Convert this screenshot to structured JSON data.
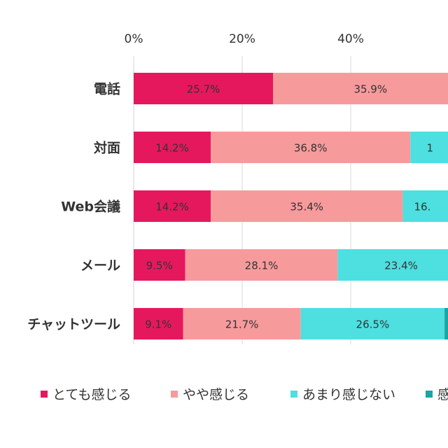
{
  "chart_data": {
    "type": "bar",
    "orientation": "horizontal",
    "stacked": true,
    "categories": [
      "電話",
      "対面",
      "Web会議",
      "メール",
      "チャットツール"
    ],
    "x_ticks": [
      "0%",
      "20%",
      "40%"
    ],
    "xlim": [
      0,
      100
    ],
    "series": [
      {
        "name": "とても感じる",
        "color": "#e5185e",
        "values": [
          25.7,
          14.2,
          14.2,
          9.5,
          9.1
        ],
        "labels": [
          "25.7%",
          "14.2%",
          "14.2%",
          "9.5%",
          "9.1%"
        ]
      },
      {
        "name": "やや感じる",
        "color": "#f79a9c",
        "values": [
          35.9,
          36.8,
          35.4,
          28.1,
          21.7
        ],
        "labels": [
          "35.9%",
          "36.8%",
          "35.4%",
          "28.1%",
          "21.7%"
        ]
      },
      {
        "name": "あまり感じない",
        "color": "#4edfe0",
        "values": [
          null,
          null,
          null,
          23.4,
          26.5
        ],
        "labels": [
          "",
          "1",
          "16.",
          "23.4%",
          "26.5%"
        ]
      },
      {
        "name": "",
        "color": "#1aa4a4",
        "values": [
          null,
          null,
          null,
          null,
          null
        ],
        "labels": []
      }
    ],
    "legend_position": "bottom",
    "legend_visible_text": [
      "とても感じる",
      "やや感じる",
      "あまり感じない",
      "感"
    ],
    "grid": true
  }
}
